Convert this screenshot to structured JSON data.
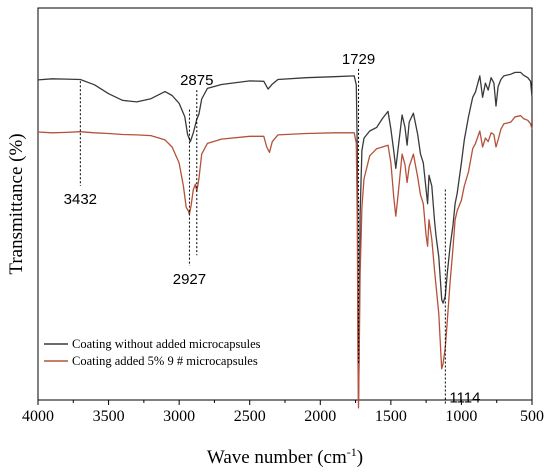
{
  "chart_data": {
    "type": "line",
    "xlabel": "Wave number (cm",
    "xlabel_sup": "-1",
    "xlabel_close": ")",
    "ylabel": "Transmittance (%)",
    "xlim": [
      4000,
      500
    ],
    "x_reversed": true,
    "x_ticks": [
      "4000",
      "3500",
      "3000",
      "2500",
      "2000",
      "1500",
      "1000",
      "500"
    ],
    "ylim": [
      0,
      100
    ],
    "y_ticks_shown": false,
    "grid": false,
    "legend_position": "bottom-left",
    "series": [
      {
        "name": "Coating without added microcapsules",
        "color": "#3a3a3a",
        "points": [
          [
            4000,
            89.9
          ],
          [
            3900,
            90.2
          ],
          [
            3800,
            90.1
          ],
          [
            3700,
            90.0
          ],
          [
            3600,
            88.5
          ],
          [
            3500,
            86.0
          ],
          [
            3400,
            84.1
          ],
          [
            3300,
            83.7
          ],
          [
            3200,
            84.6
          ],
          [
            3100,
            86.6
          ],
          [
            3050,
            85.5
          ],
          [
            3000,
            83.3
          ],
          [
            2960,
            79.5
          ],
          [
            2940,
            74.5
          ],
          [
            2920,
            72.5
          ],
          [
            2900,
            75.0
          ],
          [
            2875,
            78.8
          ],
          [
            2860,
            80.2
          ],
          [
            2840,
            84.5
          ],
          [
            2800,
            87.5
          ],
          [
            2700,
            88.6
          ],
          [
            2500,
            89.6
          ],
          [
            2400,
            89.5
          ],
          [
            2370,
            87.3
          ],
          [
            2340,
            88.7
          ],
          [
            2300,
            90.0
          ],
          [
            2100,
            90.5
          ],
          [
            1900,
            90.8
          ],
          [
            1760,
            91.0
          ],
          [
            1745,
            88.5
          ],
          [
            1738,
            70.0
          ],
          [
            1733,
            15.0
          ],
          [
            1729,
            -0.5
          ],
          [
            1725,
            14.0
          ],
          [
            1718,
            52.0
          ],
          [
            1705,
            70.0
          ],
          [
            1690,
            73.5
          ],
          [
            1650,
            75.5
          ],
          [
            1600,
            76.5
          ],
          [
            1560,
            79.0
          ],
          [
            1520,
            81.0
          ],
          [
            1500,
            76.0
          ],
          [
            1480,
            70.0
          ],
          [
            1465,
            65.0
          ],
          [
            1450,
            70.0
          ],
          [
            1420,
            80.0
          ],
          [
            1400,
            76.5
          ],
          [
            1385,
            71.5
          ],
          [
            1370,
            78.0
          ],
          [
            1340,
            80.5
          ],
          [
            1310,
            74.5
          ],
          [
            1290,
            69.0
          ],
          [
            1270,
            66.5
          ],
          [
            1250,
            59.0
          ],
          [
            1240,
            55.0
          ],
          [
            1230,
            63.0
          ],
          [
            1210,
            60.0
          ],
          [
            1190,
            50.0
          ],
          [
            1180,
            46.0
          ],
          [
            1160,
            40.0
          ],
          [
            1140,
            28.0
          ],
          [
            1130,
            27.0
          ],
          [
            1114,
            29.0
          ],
          [
            1100,
            35.5
          ],
          [
            1080,
            43.0
          ],
          [
            1060,
            49.0
          ],
          [
            1045,
            55.0
          ],
          [
            1030,
            58.0
          ],
          [
            1000,
            66.5
          ],
          [
            980,
            73.0
          ],
          [
            950,
            79.5
          ],
          [
            920,
            85.0
          ],
          [
            900,
            86.5
          ],
          [
            870,
            91.0
          ],
          [
            850,
            85.0
          ],
          [
            830,
            89.0
          ],
          [
            810,
            87.0
          ],
          [
            790,
            90.5
          ],
          [
            770,
            89.0
          ],
          [
            755,
            82.5
          ],
          [
            740,
            88.0
          ],
          [
            720,
            90.0
          ],
          [
            700,
            91.0
          ],
          [
            650,
            91.5
          ],
          [
            620,
            92.0
          ],
          [
            580,
            92.0
          ],
          [
            560,
            91.2
          ],
          [
            530,
            90.5
          ],
          [
            510,
            89.5
          ],
          [
            500,
            85.0
          ]
        ]
      },
      {
        "name": "Coating added 5% 9 # microcapsules",
        "color": "#b5513a",
        "points": [
          [
            4000,
            75.2
          ],
          [
            3900,
            75.0
          ],
          [
            3800,
            75.1
          ],
          [
            3700,
            75.3
          ],
          [
            3600,
            75.0
          ],
          [
            3500,
            74.8
          ],
          [
            3400,
            74.5
          ],
          [
            3300,
            74.4
          ],
          [
            3200,
            74.2
          ],
          [
            3100,
            73.0
          ],
          [
            3050,
            71.0
          ],
          [
            3000,
            66.5
          ],
          [
            2970,
            60.0
          ],
          [
            2950,
            54.0
          ],
          [
            2935,
            53.0
          ],
          [
            2927,
            52.0
          ],
          [
            2915,
            54.5
          ],
          [
            2900,
            59.0
          ],
          [
            2885,
            60.5
          ],
          [
            2875,
            58.5
          ],
          [
            2860,
            62.0
          ],
          [
            2840,
            69.0
          ],
          [
            2800,
            72.0
          ],
          [
            2700,
            73.2
          ],
          [
            2500,
            74.0
          ],
          [
            2400,
            74.0
          ],
          [
            2380,
            71.0
          ],
          [
            2360,
            69.5
          ],
          [
            2340,
            72.5
          ],
          [
            2300,
            74.4
          ],
          [
            2100,
            74.8
          ],
          [
            1900,
            75.0
          ],
          [
            1760,
            75.0
          ],
          [
            1745,
            72.0
          ],
          [
            1738,
            50.0
          ],
          [
            1733,
            10.0
          ],
          [
            1729,
            -2.5
          ],
          [
            1725,
            10.0
          ],
          [
            1718,
            35.0
          ],
          [
            1705,
            54.0
          ],
          [
            1690,
            62.0
          ],
          [
            1650,
            68.5
          ],
          [
            1600,
            70.5
          ],
          [
            1560,
            71.0
          ],
          [
            1520,
            71.5
          ],
          [
            1500,
            66.5
          ],
          [
            1480,
            57.0
          ],
          [
            1465,
            51.5
          ],
          [
            1450,
            57.0
          ],
          [
            1420,
            69.0
          ],
          [
            1400,
            66.0
          ],
          [
            1385,
            61.0
          ],
          [
            1370,
            65.5
          ],
          [
            1340,
            69.0
          ],
          [
            1310,
            62.5
          ],
          [
            1290,
            57.5
          ],
          [
            1270,
            55.0
          ],
          [
            1250,
            46.0
          ],
          [
            1240,
            43.0
          ],
          [
            1230,
            50.5
          ],
          [
            1210,
            45.0
          ],
          [
            1190,
            36.0
          ],
          [
            1180,
            32.0
          ],
          [
            1160,
            24.0
          ],
          [
            1145,
            12.0
          ],
          [
            1140,
            8.5
          ],
          [
            1130,
            10.0
          ],
          [
            1114,
            14.5
          ],
          [
            1100,
            22.0
          ],
          [
            1080,
            33.0
          ],
          [
            1060,
            42.5
          ],
          [
            1045,
            50.5
          ],
          [
            1030,
            53.0
          ],
          [
            1000,
            56.0
          ],
          [
            980,
            60.0
          ],
          [
            950,
            64.0
          ],
          [
            920,
            70.5
          ],
          [
            900,
            72.0
          ],
          [
            870,
            75.5
          ],
          [
            850,
            71.0
          ],
          [
            830,
            73.5
          ],
          [
            810,
            72.5
          ],
          [
            790,
            75.0
          ],
          [
            770,
            74.5
          ],
          [
            755,
            71.0
          ],
          [
            740,
            73.0
          ],
          [
            720,
            76.0
          ],
          [
            700,
            77.5
          ],
          [
            650,
            78.0
          ],
          [
            620,
            79.5
          ],
          [
            580,
            79.8
          ],
          [
            560,
            79.0
          ],
          [
            530,
            78.5
          ],
          [
            510,
            77.5
          ],
          [
            500,
            76.0
          ]
        ]
      }
    ],
    "annotations": [
      {
        "label": "3432",
        "x": 3700,
        "marker_top": 89.5,
        "marker_bottom": 60.0,
        "label_side": "below"
      },
      {
        "label": "2875",
        "x": 2875,
        "marker_top": 87.0,
        "marker_bottom": 40.5,
        "label_side": "above"
      },
      {
        "label": "2927",
        "x": 2927,
        "marker_top": 81.5,
        "marker_bottom": 37.5,
        "label_side": "below"
      },
      {
        "label": "1729",
        "x": 1729,
        "marker_top": 93.0,
        "marker_bottom": 10.0,
        "label_side": "above"
      },
      {
        "label": "1114",
        "x": 1114,
        "marker_top": 59.0,
        "marker_bottom": -1.5,
        "label_side": "below-right"
      }
    ]
  }
}
